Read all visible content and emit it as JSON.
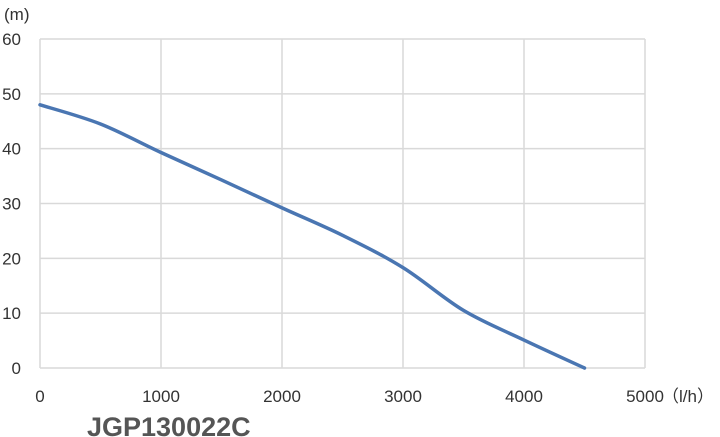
{
  "chart_data": {
    "type": "line",
    "title": "JGP130022C",
    "xlabel": "（l/h）",
    "ylabel": "(m)",
    "xlim": [
      0,
      5000
    ],
    "ylim": [
      0,
      60
    ],
    "xticks": [
      "0",
      "1000",
      "2000",
      "3000",
      "4000",
      "5000"
    ],
    "yticks": [
      "0",
      "10",
      "20",
      "30",
      "40",
      "50",
      "60"
    ],
    "grid": true,
    "color": "#4a76b2",
    "series": [
      {
        "x": [
          0,
          500,
          1000,
          1500,
          2000,
          2500,
          3000,
          3500,
          4000,
          4500
        ],
        "y": [
          48,
          44.5,
          39.3,
          34.3,
          29.2,
          24.2,
          18.3,
          10.5,
          5.1,
          0
        ]
      }
    ]
  }
}
